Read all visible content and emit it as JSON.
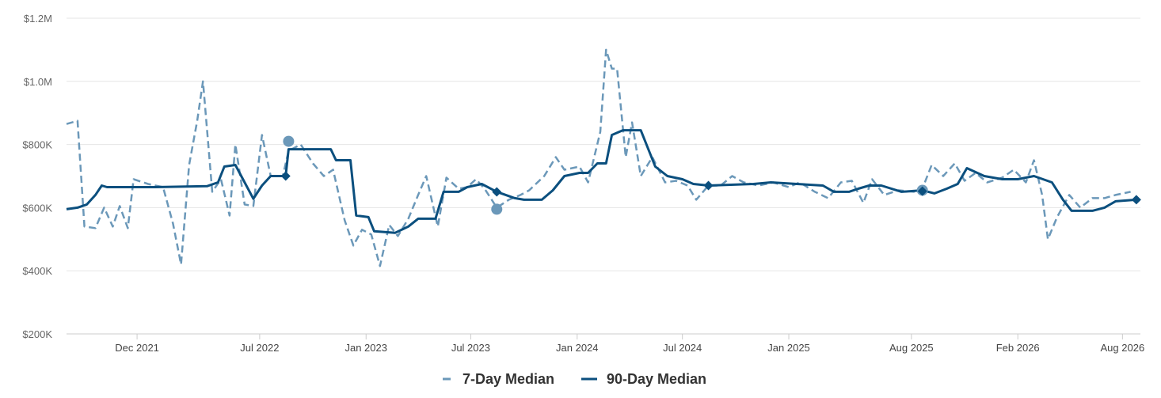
{
  "chart_data": {
    "type": "line",
    "x_unit": "date",
    "ylim": [
      200000,
      1200000
    ],
    "xlim": [
      "2021-08-01",
      "2026-09-01"
    ],
    "y_ticks": [
      {
        "value": 200000,
        "label": "$200K"
      },
      {
        "value": 400000,
        "label": "$400K"
      },
      {
        "value": 600000,
        "label": "$600K"
      },
      {
        "value": 800000,
        "label": "$800K"
      },
      {
        "value": 1000000,
        "label": "$1.0M"
      },
      {
        "value": 1200000,
        "label": "$1.2M"
      }
    ],
    "x_ticks": [
      {
        "date": "2021-12-01",
        "label": "Dec 2021"
      },
      {
        "date": "2022-07-01",
        "label": "Jul 2022"
      },
      {
        "date": "2023-01-01",
        "label": "Jan 2023"
      },
      {
        "date": "2023-07-01",
        "label": "Jul 2023"
      },
      {
        "date": "2024-01-01",
        "label": "Jan 2024"
      },
      {
        "date": "2024-07-01",
        "label": "Jul 2024"
      },
      {
        "date": "2025-01-01",
        "label": "Jan 2025"
      },
      {
        "date": "2025-08-01",
        "label": "Aug 2025"
      },
      {
        "date": "2026-02-01",
        "label": "Feb 2026"
      },
      {
        "date": "2026-08-01",
        "label": "Aug 2026"
      }
    ],
    "grid": "horizontal",
    "legend_position": "bottom-center",
    "series": [
      {
        "name": "7-Day Median",
        "style": "dashed",
        "color": "#6b98b9",
        "points": [
          [
            "2021-08-01",
            865000
          ],
          [
            "2021-08-20",
            875000
          ],
          [
            "2021-09-01",
            540000
          ],
          [
            "2021-09-20",
            535000
          ],
          [
            "2021-10-05",
            600000
          ],
          [
            "2021-10-20",
            540000
          ],
          [
            "2021-11-01",
            605000
          ],
          [
            "2021-11-15",
            535000
          ],
          [
            "2021-11-25",
            690000
          ],
          [
            "2021-12-20",
            675000
          ],
          [
            "2022-01-15",
            665000
          ],
          [
            "2022-02-01",
            550000
          ],
          [
            "2022-02-15",
            420000
          ],
          [
            "2022-03-01",
            735000
          ],
          [
            "2022-03-15",
            875000
          ],
          [
            "2022-03-25",
            1000000
          ],
          [
            "2022-04-10",
            650000
          ],
          [
            "2022-04-25",
            690000
          ],
          [
            "2022-05-10",
            575000
          ],
          [
            "2022-05-20",
            800000
          ],
          [
            "2022-06-05",
            610000
          ],
          [
            "2022-06-20",
            605000
          ],
          [
            "2022-07-05",
            830000
          ],
          [
            "2022-07-20",
            700000
          ],
          [
            "2022-08-10",
            700000
          ],
          [
            "2022-08-20",
            780000
          ],
          [
            "2022-09-10",
            800000
          ],
          [
            "2022-10-01",
            740000
          ],
          [
            "2022-10-20",
            700000
          ],
          [
            "2022-11-05",
            720000
          ],
          [
            "2022-11-25",
            560000
          ],
          [
            "2022-12-10",
            480000
          ],
          [
            "2022-12-25",
            530000
          ],
          [
            "2023-01-10",
            515000
          ],
          [
            "2023-01-25",
            415000
          ],
          [
            "2023-02-10",
            545000
          ],
          [
            "2023-02-25",
            510000
          ],
          [
            "2023-03-15",
            565000
          ],
          [
            "2023-04-01",
            640000
          ],
          [
            "2023-04-15",
            700000
          ],
          [
            "2023-05-05",
            540000
          ],
          [
            "2023-05-20",
            695000
          ],
          [
            "2023-06-10",
            660000
          ],
          [
            "2023-06-25",
            665000
          ],
          [
            "2023-07-10",
            690000
          ],
          [
            "2023-07-25",
            660000
          ],
          [
            "2023-08-15",
            600000
          ],
          [
            "2023-09-05",
            625000
          ],
          [
            "2023-09-25",
            640000
          ],
          [
            "2023-10-10",
            655000
          ],
          [
            "2023-11-05",
            700000
          ],
          [
            "2023-11-25",
            760000
          ],
          [
            "2023-12-10",
            720000
          ],
          [
            "2024-01-05",
            730000
          ],
          [
            "2024-01-20",
            680000
          ],
          [
            "2024-02-10",
            840000
          ],
          [
            "2024-02-20",
            1100000
          ],
          [
            "2024-03-01",
            1040000
          ],
          [
            "2024-03-10",
            1040000
          ],
          [
            "2024-03-25",
            760000
          ],
          [
            "2024-04-05",
            870000
          ],
          [
            "2024-04-20",
            700000
          ],
          [
            "2024-05-10",
            760000
          ],
          [
            "2024-06-01",
            680000
          ],
          [
            "2024-06-20",
            685000
          ],
          [
            "2024-07-10",
            670000
          ],
          [
            "2024-07-25",
            625000
          ],
          [
            "2024-08-15",
            670000
          ],
          [
            "2024-09-05",
            670000
          ],
          [
            "2024-09-25",
            700000
          ],
          [
            "2024-10-15",
            680000
          ],
          [
            "2024-11-10",
            670000
          ],
          [
            "2024-12-05",
            680000
          ],
          [
            "2025-01-01",
            665000
          ],
          [
            "2025-01-20",
            680000
          ],
          [
            "2025-02-15",
            650000
          ],
          [
            "2025-03-10",
            630000
          ],
          [
            "2025-04-01",
            680000
          ],
          [
            "2025-04-20",
            685000
          ],
          [
            "2025-05-10",
            615000
          ],
          [
            "2025-05-25",
            690000
          ],
          [
            "2025-06-15",
            640000
          ],
          [
            "2025-07-10",
            655000
          ],
          [
            "2025-08-05",
            650000
          ],
          [
            "2025-08-20",
            660000
          ],
          [
            "2025-09-05",
            735000
          ],
          [
            "2025-09-25",
            700000
          ],
          [
            "2025-10-15",
            740000
          ],
          [
            "2025-11-01",
            685000
          ],
          [
            "2025-11-20",
            710000
          ],
          [
            "2025-12-10",
            680000
          ],
          [
            "2026-01-05",
            695000
          ],
          [
            "2026-01-25",
            720000
          ],
          [
            "2026-02-15",
            680000
          ],
          [
            "2026-03-01",
            750000
          ],
          [
            "2026-03-15",
            640000
          ],
          [
            "2026-03-25",
            500000
          ],
          [
            "2026-04-10",
            570000
          ],
          [
            "2026-05-01",
            640000
          ],
          [
            "2026-05-20",
            600000
          ],
          [
            "2026-06-10",
            630000
          ],
          [
            "2026-07-01",
            630000
          ],
          [
            "2026-07-20",
            640000
          ],
          [
            "2026-08-15",
            650000
          ]
        ]
      },
      {
        "name": "90-Day Median",
        "style": "solid",
        "color": "#0b4f7e",
        "points": [
          [
            "2021-08-01",
            595000
          ],
          [
            "2021-08-20",
            600000
          ],
          [
            "2021-09-05",
            610000
          ],
          [
            "2021-09-20",
            640000
          ],
          [
            "2021-10-01",
            670000
          ],
          [
            "2021-10-10",
            665000
          ],
          [
            "2022-01-01",
            665000
          ],
          [
            "2022-04-01",
            668000
          ],
          [
            "2022-04-20",
            680000
          ],
          [
            "2022-05-01",
            730000
          ],
          [
            "2022-05-20",
            735000
          ],
          [
            "2022-06-05",
            680000
          ],
          [
            "2022-06-20",
            628000
          ],
          [
            "2022-07-05",
            670000
          ],
          [
            "2022-07-20",
            700000
          ],
          [
            "2022-08-15",
            700000
          ],
          [
            "2022-08-20",
            785000
          ],
          [
            "2022-11-01",
            785000
          ],
          [
            "2022-11-10",
            750000
          ],
          [
            "2022-12-05",
            750000
          ],
          [
            "2022-12-15",
            575000
          ],
          [
            "2023-01-05",
            570000
          ],
          [
            "2023-01-15",
            525000
          ],
          [
            "2023-02-20",
            520000
          ],
          [
            "2023-03-15",
            540000
          ],
          [
            "2023-04-01",
            565000
          ],
          [
            "2023-05-01",
            565000
          ],
          [
            "2023-05-15",
            650000
          ],
          [
            "2023-06-10",
            650000
          ],
          [
            "2023-06-25",
            665000
          ],
          [
            "2023-07-20",
            675000
          ],
          [
            "2023-08-15",
            650000
          ],
          [
            "2023-09-15",
            630000
          ],
          [
            "2023-10-01",
            625000
          ],
          [
            "2023-11-01",
            625000
          ],
          [
            "2023-11-20",
            655000
          ],
          [
            "2023-12-10",
            700000
          ],
          [
            "2024-01-05",
            710000
          ],
          [
            "2024-01-20",
            710000
          ],
          [
            "2024-02-05",
            740000
          ],
          [
            "2024-02-20",
            740000
          ],
          [
            "2024-03-01",
            830000
          ],
          [
            "2024-03-20",
            845000
          ],
          [
            "2024-04-20",
            845000
          ],
          [
            "2024-05-15",
            730000
          ],
          [
            "2024-06-05",
            700000
          ],
          [
            "2024-07-01",
            690000
          ],
          [
            "2024-07-20",
            675000
          ],
          [
            "2024-08-15",
            670000
          ],
          [
            "2024-11-01",
            675000
          ],
          [
            "2024-12-01",
            680000
          ],
          [
            "2025-01-15",
            675000
          ],
          [
            "2025-03-01",
            670000
          ],
          [
            "2025-03-20",
            650000
          ],
          [
            "2025-04-15",
            650000
          ],
          [
            "2025-05-01",
            660000
          ],
          [
            "2025-05-20",
            670000
          ],
          [
            "2025-06-10",
            670000
          ],
          [
            "2025-07-15",
            650000
          ],
          [
            "2025-08-20",
            655000
          ],
          [
            "2025-09-10",
            645000
          ],
          [
            "2025-10-01",
            660000
          ],
          [
            "2025-10-20",
            675000
          ],
          [
            "2025-11-05",
            725000
          ],
          [
            "2025-12-05",
            700000
          ],
          [
            "2026-01-05",
            690000
          ],
          [
            "2026-02-01",
            690000
          ],
          [
            "2026-03-01",
            700000
          ],
          [
            "2026-04-01",
            680000
          ],
          [
            "2026-04-20",
            625000
          ],
          [
            "2026-05-05",
            590000
          ],
          [
            "2026-05-20",
            590000
          ],
          [
            "2026-06-10",
            590000
          ],
          [
            "2026-07-01",
            600000
          ],
          [
            "2026-07-20",
            620000
          ],
          [
            "2026-08-25",
            625000
          ]
        ]
      }
    ],
    "markers": [
      {
        "series": "7-Day Median",
        "shape": "circle",
        "date": "2022-08-20",
        "value": 810000
      },
      {
        "series": "7-Day Median",
        "shape": "circle",
        "date": "2023-08-15",
        "value": 595000
      },
      {
        "series": "7-Day Median",
        "shape": "circle",
        "date": "2025-08-20",
        "value": 655000
      },
      {
        "series": "90-Day Median",
        "shape": "diamond",
        "date": "2022-08-15",
        "value": 700000
      },
      {
        "series": "90-Day Median",
        "shape": "diamond",
        "date": "2023-08-15",
        "value": 650000
      },
      {
        "series": "90-Day Median",
        "shape": "diamond",
        "date": "2024-08-15",
        "value": 670000
      },
      {
        "series": "90-Day Median",
        "shape": "diamond",
        "date": "2025-08-20",
        "value": 652000
      },
      {
        "series": "90-Day Median",
        "shape": "diamond",
        "date": "2026-08-25",
        "value": 625000
      }
    ],
    "legend": [
      {
        "label": "7-Day Median",
        "style": "dashed",
        "color": "#6b98b9"
      },
      {
        "label": "90-Day Median",
        "style": "solid",
        "color": "#0b4f7e"
      }
    ]
  }
}
